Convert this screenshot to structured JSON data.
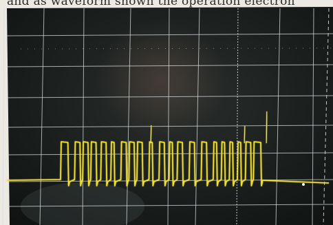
{
  "caption": {
    "text": "and as waveform shown the operation electron"
  },
  "scope": {
    "grid_divisions": {
      "horizontal": 10,
      "vertical": 8
    },
    "trace": {
      "color": "#f2e030",
      "baseline_level": 0.0,
      "high_level": 1.0,
      "pulses": [
        {
          "start": 0.0,
          "end": 0.04
        },
        {
          "start": 0.07,
          "end": 0.1
        },
        {
          "start": 0.11,
          "end": 0.14
        },
        {
          "start": 0.15,
          "end": 0.18
        },
        {
          "start": 0.2,
          "end": 0.23
        },
        {
          "start": 0.25,
          "end": 0.27
        },
        {
          "start": 0.3,
          "end": 0.33
        },
        {
          "start": 0.34,
          "end": 0.37
        },
        {
          "start": 0.38,
          "end": 0.41
        },
        {
          "start": 0.44,
          "end": 0.46
        },
        {
          "start": 0.49,
          "end": 0.52
        },
        {
          "start": 0.54,
          "end": 0.56
        },
        {
          "start": 0.58,
          "end": 0.61
        },
        {
          "start": 0.64,
          "end": 0.67
        },
        {
          "start": 0.7,
          "end": 0.73
        },
        {
          "start": 0.76,
          "end": 0.78
        },
        {
          "start": 0.8,
          "end": 0.82
        },
        {
          "start": 0.84,
          "end": 0.86
        },
        {
          "start": 0.88,
          "end": 0.9
        },
        {
          "start": 0.92,
          "end": 0.95
        },
        {
          "start": 0.96,
          "end": 1.0
        }
      ]
    }
  }
}
